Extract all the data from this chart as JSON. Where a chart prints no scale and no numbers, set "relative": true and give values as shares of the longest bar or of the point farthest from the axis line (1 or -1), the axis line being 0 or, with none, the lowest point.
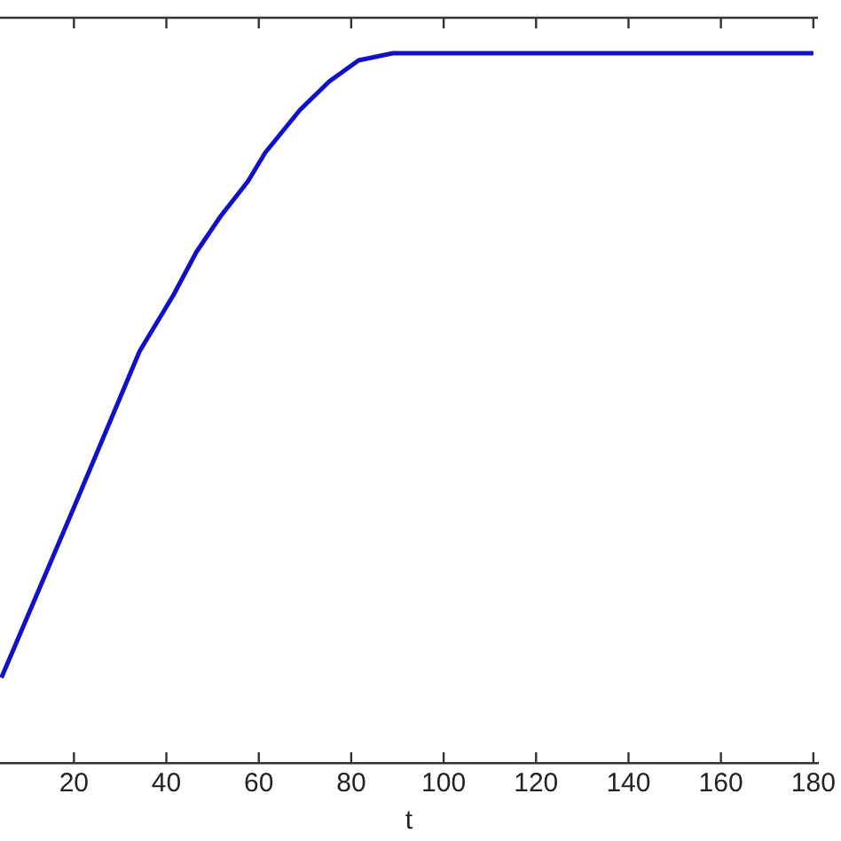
{
  "chart_data": {
    "type": "line",
    "xlabel": "t",
    "relative": true,
    "x": [
      4.3,
      20,
      34.2,
      41.6,
      46.5,
      51.7,
      57.7,
      61.4,
      68.9,
      75.2,
      81.6,
      89,
      180
    ],
    "series": [
      {
        "color": "#1010c8",
        "values": [
          0.12,
          0.36,
          0.58,
          0.66,
          0.72,
          0.77,
          0.82,
          0.86,
          0.92,
          0.96,
          0.99,
          1,
          1
        ]
      }
    ],
    "xlim": [
      4,
      181
    ],
    "xticks": [
      20,
      40,
      60,
      80,
      100,
      120,
      140,
      160,
      180
    ],
    "grid": false,
    "legend": false,
    "marker": "none",
    "line_style": "solid"
  }
}
